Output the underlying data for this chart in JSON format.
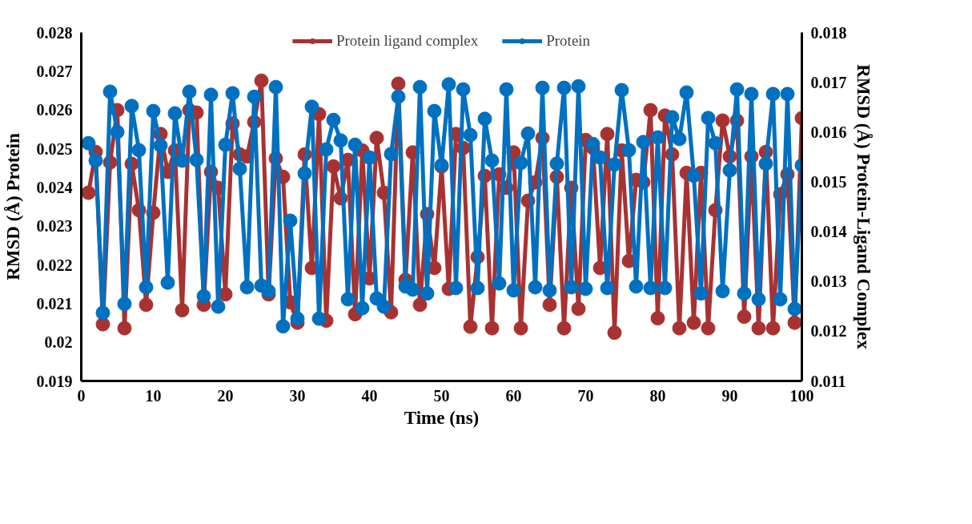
{
  "chart_data": {
    "type": "line",
    "xlabel": "Time (ns)",
    "ylabel": "RMSD (Å) Protein",
    "y2label": "RMSD (Å) Protein-Ligand Complex",
    "x": [
      1,
      2,
      3,
      4,
      5,
      6,
      7,
      8,
      9,
      10,
      11,
      12,
      13,
      14,
      15,
      16,
      17,
      18,
      19,
      20,
      21,
      22,
      23,
      24,
      25,
      26,
      27,
      28,
      29,
      30,
      31,
      32,
      33,
      34,
      35,
      36,
      37,
      38,
      39,
      40,
      41,
      42,
      43,
      44,
      45,
      46,
      47,
      48,
      49,
      50,
      51,
      52,
      53,
      54,
      55,
      56,
      57,
      58,
      59,
      60,
      61,
      62,
      63,
      64,
      65,
      66,
      67,
      68,
      69,
      70,
      71,
      72,
      73,
      74,
      75,
      76,
      77,
      78,
      79,
      80,
      81,
      82,
      83,
      84,
      85,
      86,
      87,
      88,
      89,
      90,
      91,
      92,
      93,
      94,
      95,
      96,
      97,
      98,
      99,
      100
    ],
    "xlim": [
      0,
      100
    ],
    "xticks": [
      0,
      10,
      20,
      30,
      40,
      50,
      60,
      70,
      80,
      90,
      100
    ],
    "ylim": [
      0.019,
      0.028
    ],
    "yticks": [
      0.019,
      0.02,
      0.021,
      0.022,
      0.023,
      0.024,
      0.025,
      0.026,
      0.027,
      0.028
    ],
    "y2lim": [
      0.011,
      0.018
    ],
    "y2ticks": [
      0.011,
      0.012,
      0.013,
      0.014,
      0.015,
      0.016,
      0.017,
      0.018
    ],
    "legend": "top",
    "marker": "circle",
    "line_style": "solid",
    "series": [
      {
        "name": "Protein ligand complex",
        "color": "#a83232",
        "axis": "y2",
        "values": [
          0.01478,
          0.0156,
          0.01214,
          0.01539,
          0.01644,
          0.01206,
          0.01536,
          0.01443,
          0.01253,
          0.01438,
          0.01596,
          0.0152,
          0.01563,
          0.01242,
          0.01644,
          0.01639,
          0.01253,
          0.0152,
          0.01488,
          0.01274,
          0.01617,
          0.01555,
          0.01551,
          0.0162,
          0.01703,
          0.01274,
          0.01547,
          0.0151,
          0.01258,
          0.01217,
          0.01555,
          0.01327,
          0.01636,
          0.01221,
          0.01531,
          0.01467,
          0.01544,
          0.01234,
          0.01563,
          0.01306,
          0.01588,
          0.01478,
          0.01238,
          0.01697,
          0.01303,
          0.01559,
          0.01253,
          0.01435,
          0.01327,
          0.01531,
          0.01285,
          0.01596,
          0.01568,
          0.01209,
          0.01349,
          0.01512,
          0.01206,
          0.01515,
          0.01488,
          0.01559,
          0.01206,
          0.01462,
          0.01499,
          0.01588,
          0.01253,
          0.0151,
          0.01206,
          0.01488,
          0.01245,
          0.01584,
          0.01568,
          0.01327,
          0.01596,
          0.01197,
          0.01563,
          0.01341,
          0.01504,
          0.01499,
          0.01644,
          0.01226,
          0.01633,
          0.01555,
          0.01206,
          0.01518,
          0.01217,
          0.01518,
          0.01206,
          0.01443,
          0.01623,
          0.01551,
          0.01623,
          0.01229,
          0.01551,
          0.01206,
          0.0156,
          0.01206,
          0.01475,
          0.01515,
          0.01217,
          0.01628
        ]
      },
      {
        "name": "Protein",
        "color": "#0070c0",
        "values": [
          0.02514,
          0.02469,
          0.02076,
          0.02647,
          0.02543,
          0.02099,
          0.0261,
          0.02496,
          0.02142,
          0.02597,
          0.02508,
          0.02154,
          0.02591,
          0.02469,
          0.02647,
          0.02471,
          0.02119,
          0.02639,
          0.02092,
          0.0251,
          0.02643,
          0.02448,
          0.02142,
          0.02634,
          0.02146,
          0.02132,
          0.02659,
          0.02041,
          0.02314,
          0.02061,
          0.02436,
          0.02608,
          0.02061,
          0.02498,
          0.02574,
          0.02521,
          0.02111,
          0.0251,
          0.02088,
          0.02477,
          0.02113,
          0.02092,
          0.02486,
          0.02634,
          0.02144,
          0.02136,
          0.02659,
          0.02126,
          0.02597,
          0.02457,
          0.02666,
          0.0214,
          0.02653,
          0.02535,
          0.0214,
          0.02577,
          0.02469,
          0.02152,
          0.02653,
          0.02134,
          0.02463,
          0.02539,
          0.02142,
          0.02657,
          0.02134,
          0.02461,
          0.02657,
          0.02142,
          0.02661,
          0.02138,
          0.02512,
          0.02477,
          0.0214,
          0.02459,
          0.02651,
          0.02496,
          0.02144,
          0.02517,
          0.0214,
          0.02529,
          0.0214,
          0.02581,
          0.02525,
          0.02645,
          0.0243,
          0.02126,
          0.02579,
          0.02514,
          0.02132,
          0.02444,
          0.02653,
          0.02126,
          0.02641,
          0.02111,
          0.02461,
          0.02641,
          0.02111,
          0.02641,
          0.02086,
          0.02457
        ]
      }
    ]
  }
}
